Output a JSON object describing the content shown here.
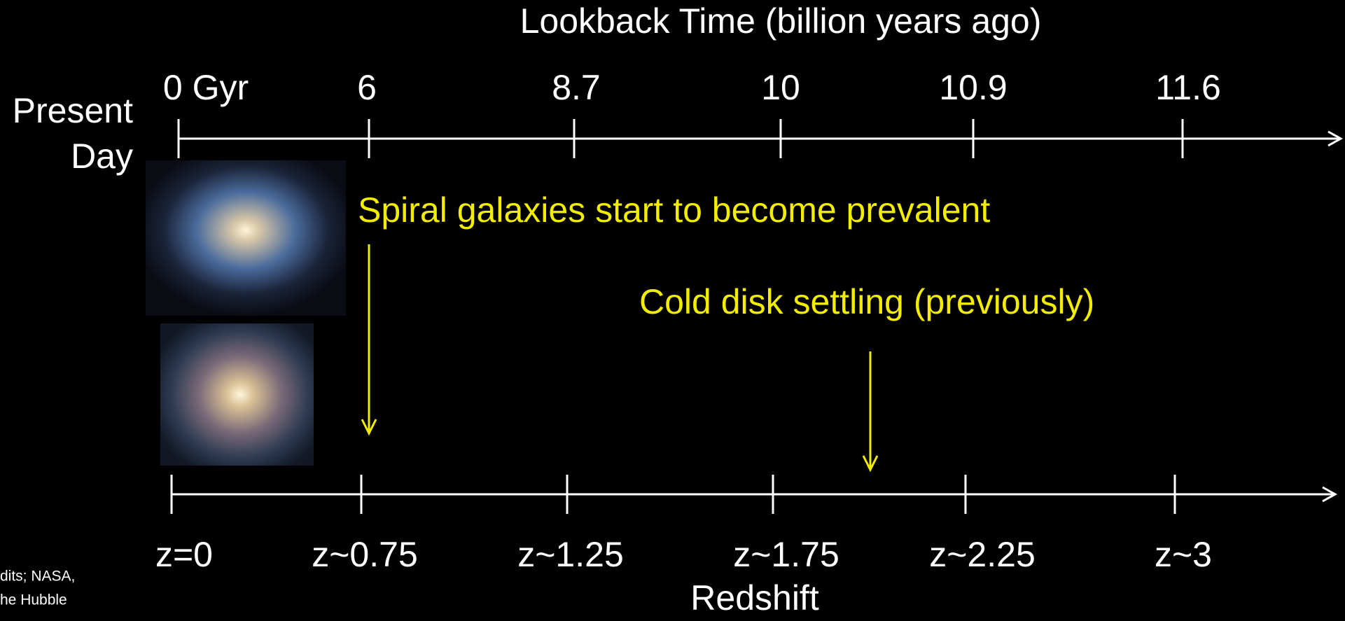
{
  "title": "Lookback Time (billion years ago)",
  "side_label": [
    "Present",
    "Day"
  ],
  "top_ticks": [
    "0 Gyr",
    "6",
    "8.7",
    "10",
    "10.9",
    "11.6"
  ],
  "annotations": [
    "Spiral galaxies start to become prevalent",
    "Cold disk settling (previously)"
  ],
  "bottom_ticks": [
    "z=0",
    "z~0.75",
    "z~1.25",
    "z~1.75",
    "z~2.25",
    "z~3"
  ],
  "bottom_title": "Redshift",
  "credit": [
    "dits; NASA,",
    "he Hubble"
  ]
}
